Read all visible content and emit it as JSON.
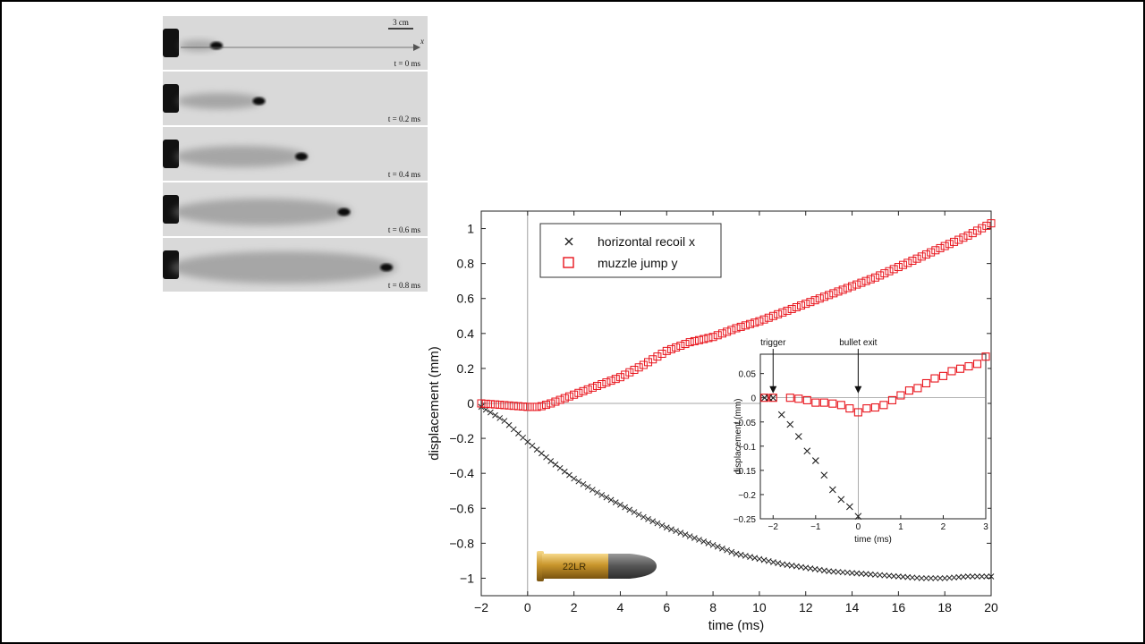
{
  "photo_strip": {
    "scale_label": "3 cm",
    "axis_label": "x",
    "frames": [
      {
        "label": "t = 0 ms",
        "plume_extent": 0.0
      },
      {
        "label": "t = 0.2 ms",
        "plume_extent": 0.25
      },
      {
        "label": "t = 0.4 ms",
        "plume_extent": 0.5
      },
      {
        "label": "t = 0.6 ms",
        "plume_extent": 0.75
      },
      {
        "label": "t = 0.8 ms",
        "plume_extent": 1.0
      }
    ]
  },
  "bullet_label": "22LR",
  "chart_data": [
    {
      "type": "scatter",
      "xlabel": "time (ms)",
      "ylabel": "displacement (mm)",
      "xlim": [
        -2,
        20
      ],
      "ylim": [
        -1.1,
        1.1
      ],
      "xticks": [
        -2,
        0,
        2,
        4,
        6,
        8,
        10,
        12,
        14,
        16,
        18,
        20
      ],
      "yticks": [
        -1,
        -0.8,
        -0.6,
        -0.4,
        -0.2,
        0,
        0.2,
        0.4,
        0.6,
        0.8,
        1
      ],
      "xtick_labels": [
        "−2",
        "0",
        "2",
        "4",
        "6",
        "8",
        "10",
        "12",
        "14",
        "16",
        "18",
        "20"
      ],
      "ytick_labels": [
        "−1",
        "−0.8",
        "−0.6",
        "−0.4",
        "−0.2",
        "0",
        "0.2",
        "0.4",
        "0.6",
        "0.8",
        "1"
      ],
      "legend_position": "top-left",
      "series": [
        {
          "name": "horizontal recoil x",
          "marker": "x",
          "color": "#222222",
          "points": [
            [
              -2,
              -0.02
            ],
            [
              -1,
              -0.1
            ],
            [
              0,
              -0.22
            ],
            [
              1,
              -0.33
            ],
            [
              2,
              -0.43
            ],
            [
              3,
              -0.51
            ],
            [
              4,
              -0.58
            ],
            [
              5,
              -0.65
            ],
            [
              6,
              -0.71
            ],
            [
              7,
              -0.76
            ],
            [
              8,
              -0.81
            ],
            [
              9,
              -0.86
            ],
            [
              10,
              -0.89
            ],
            [
              11,
              -0.92
            ],
            [
              12,
              -0.94
            ],
            [
              13,
              -0.96
            ],
            [
              14,
              -0.97
            ],
            [
              15,
              -0.98
            ],
            [
              16,
              -0.99
            ],
            [
              17,
              -1.0
            ],
            [
              18,
              -1.0
            ],
            [
              19,
              -0.99
            ],
            [
              20,
              -0.99
            ]
          ]
        },
        {
          "name": "muzzle jump y",
          "marker": "square",
          "color": "#e8141c",
          "points": [
            [
              -2,
              0.0
            ],
            [
              -1,
              -0.01
            ],
            [
              0,
              -0.02
            ],
            [
              0.5,
              -0.02
            ],
            [
              1,
              0.0
            ],
            [
              2,
              0.05
            ],
            [
              3,
              0.1
            ],
            [
              4,
              0.15
            ],
            [
              5,
              0.22
            ],
            [
              6,
              0.3
            ],
            [
              7,
              0.35
            ],
            [
              8,
              0.38
            ],
            [
              9,
              0.43
            ],
            [
              10,
              0.47
            ],
            [
              11,
              0.52
            ],
            [
              12,
              0.57
            ],
            [
              13,
              0.62
            ],
            [
              14,
              0.67
            ],
            [
              15,
              0.72
            ],
            [
              16,
              0.78
            ],
            [
              17,
              0.84
            ],
            [
              18,
              0.9
            ],
            [
              19,
              0.96
            ],
            [
              20,
              1.03
            ]
          ]
        }
      ]
    },
    {
      "type": "scatter",
      "inset": true,
      "xlabel": "time (ms)",
      "ylabel": "displacement (mm)",
      "xlim": [
        -2.3,
        3
      ],
      "ylim": [
        -0.25,
        0.09
      ],
      "xticks": [
        -2,
        -1,
        0,
        1,
        2,
        3
      ],
      "yticks": [
        -0.25,
        -0.2,
        -0.15,
        -0.1,
        -0.05,
        0,
        0.05
      ],
      "xtick_labels": [
        "−2",
        "−1",
        "0",
        "1",
        "2",
        "3"
      ],
      "ytick_labels": [
        "−0.25",
        "−0.2",
        "−0.15",
        "−0.1",
        "−0.05",
        "0",
        "0.05"
      ],
      "annotations": [
        {
          "text": "trigger",
          "x": -2
        },
        {
          "text": "bullet exit",
          "x": 0
        }
      ],
      "series": [
        {
          "name": "horizontal recoil x",
          "marker": "x",
          "color": "#222222",
          "points": [
            [
              -2.2,
              0.0
            ],
            [
              -2.1,
              0.0
            ],
            [
              -2.0,
              0.0
            ],
            [
              -1.8,
              -0.035
            ],
            [
              -1.6,
              -0.055
            ],
            [
              -1.4,
              -0.08
            ],
            [
              -1.2,
              -0.11
            ],
            [
              -1.0,
              -0.13
            ],
            [
              -0.8,
              -0.16
            ],
            [
              -0.6,
              -0.19
            ],
            [
              -0.4,
              -0.21
            ],
            [
              -0.2,
              -0.225
            ],
            [
              0.0,
              -0.245
            ]
          ]
        },
        {
          "name": "muzzle jump y",
          "marker": "square",
          "color": "#e8141c",
          "points": [
            [
              -2.2,
              0.0
            ],
            [
              -2.0,
              0.0
            ],
            [
              -1.6,
              0.0
            ],
            [
              -1.4,
              -0.002
            ],
            [
              -1.2,
              -0.005
            ],
            [
              -1.0,
              -0.01
            ],
            [
              -0.8,
              -0.01
            ],
            [
              -0.6,
              -0.012
            ],
            [
              -0.4,
              -0.015
            ],
            [
              -0.2,
              -0.022
            ],
            [
              0.0,
              -0.03
            ],
            [
              0.2,
              -0.022
            ],
            [
              0.4,
              -0.02
            ],
            [
              0.6,
              -0.015
            ],
            [
              0.8,
              -0.005
            ],
            [
              1.0,
              0.005
            ],
            [
              1.2,
              0.015
            ],
            [
              1.4,
              0.02
            ],
            [
              1.6,
              0.03
            ],
            [
              1.8,
              0.04
            ],
            [
              2.0,
              0.045
            ],
            [
              2.2,
              0.055
            ],
            [
              2.4,
              0.06
            ],
            [
              2.6,
              0.065
            ],
            [
              2.8,
              0.07
            ],
            [
              3.0,
              0.085
            ]
          ]
        }
      ]
    }
  ]
}
